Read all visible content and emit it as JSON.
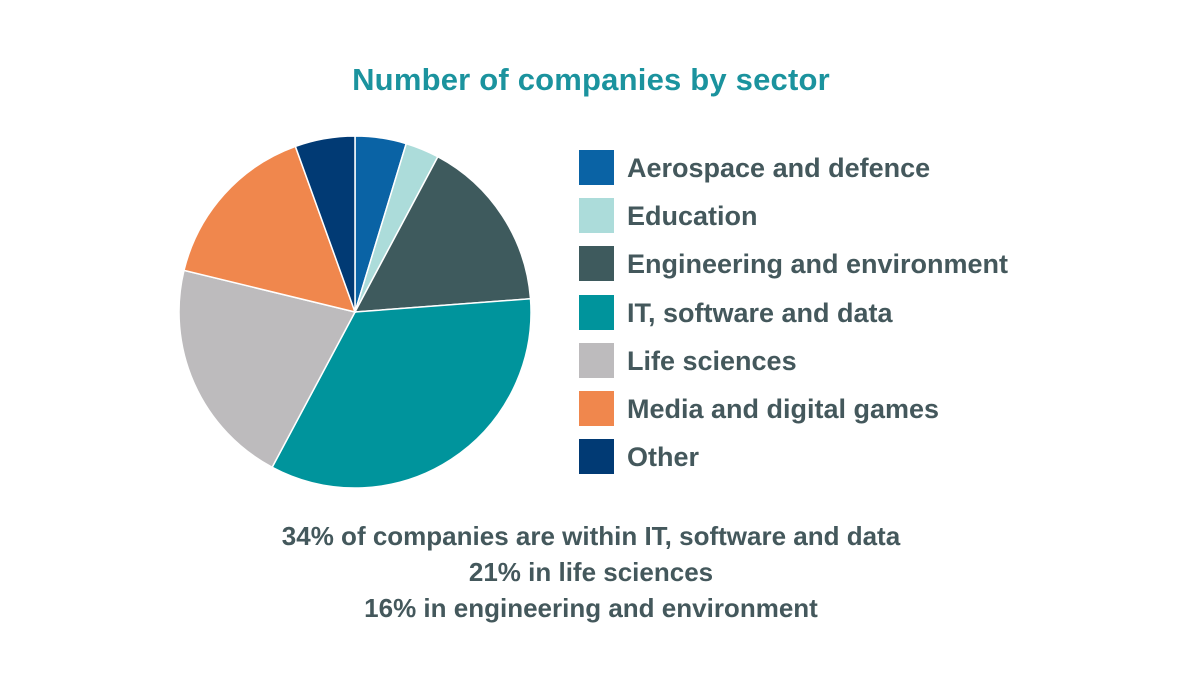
{
  "chart_data": {
    "type": "pie",
    "title": "Number of companies by sector",
    "categories": [
      "Aerospace and defence",
      "Education",
      "Engineering and environment",
      "IT, software and data",
      "Life sciences",
      "Media and digital games",
      "Other"
    ],
    "values": [
      4.7,
      3.1,
      16,
      34,
      21,
      15.7,
      5.5
    ],
    "colors": [
      "#0a63a5",
      "#acdcda",
      "#3e5a5d",
      "#00949c",
      "#bdbbbd",
      "#f0874d",
      "#013a74"
    ],
    "slice_order": [
      "Aerospace and defence",
      "Education",
      "Engineering and environment",
      "IT, software and data",
      "Life sciences",
      "Media and digital games",
      "Other"
    ],
    "start_direction": "top",
    "direction": "clockwise",
    "legend_position": "right"
  },
  "notes": [
    "34% of companies are within IT, software and data",
    "21% in life sciences",
    "16% in engineering and environment"
  ]
}
